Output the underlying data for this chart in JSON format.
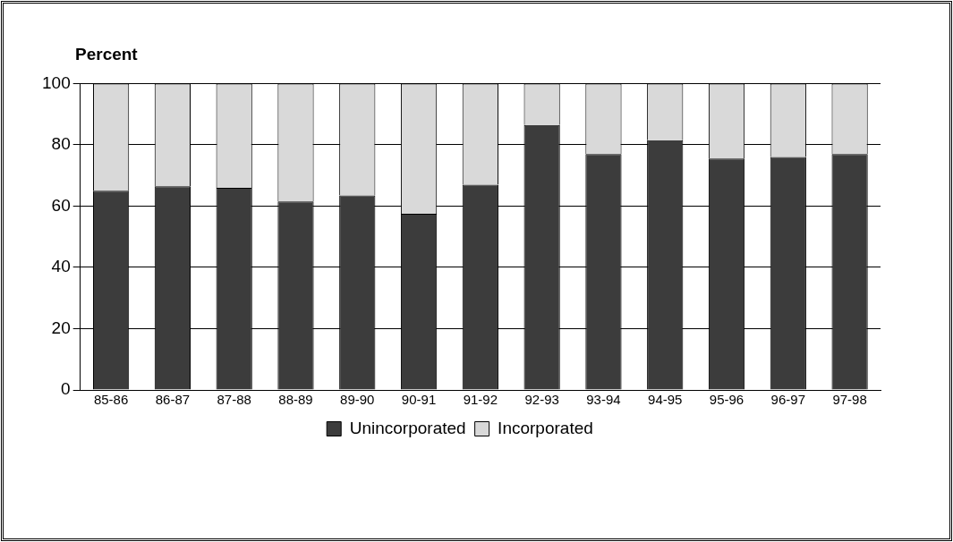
{
  "chart_data": {
    "type": "bar",
    "stacked": true,
    "ylabel": "Percent",
    "categories": [
      "85-86",
      "86-87",
      "87-88",
      "88-89",
      "89-90",
      "90-91",
      "91-92",
      "92-93",
      "93-94",
      "94-95",
      "95-96",
      "96-97",
      "97-98"
    ],
    "series": [
      {
        "name": "Unincorporated",
        "color": "#3c3c3c",
        "values": [
          65,
          66.5,
          66,
          61.5,
          63.5,
          57.5,
          67,
          86.5,
          77,
          81.5,
          75.5,
          76,
          77
        ]
      },
      {
        "name": "Incorporated",
        "color": "#d9d9d9",
        "values": [
          35,
          33.5,
          34,
          38.5,
          36.5,
          42.5,
          33,
          13.5,
          23,
          18.5,
          24.5,
          24,
          23
        ]
      }
    ],
    "ylim": [
      0,
      100
    ],
    "yticks": [
      0,
      20,
      40,
      60,
      80,
      100
    ],
    "grid": "y",
    "legend": "bottom"
  }
}
